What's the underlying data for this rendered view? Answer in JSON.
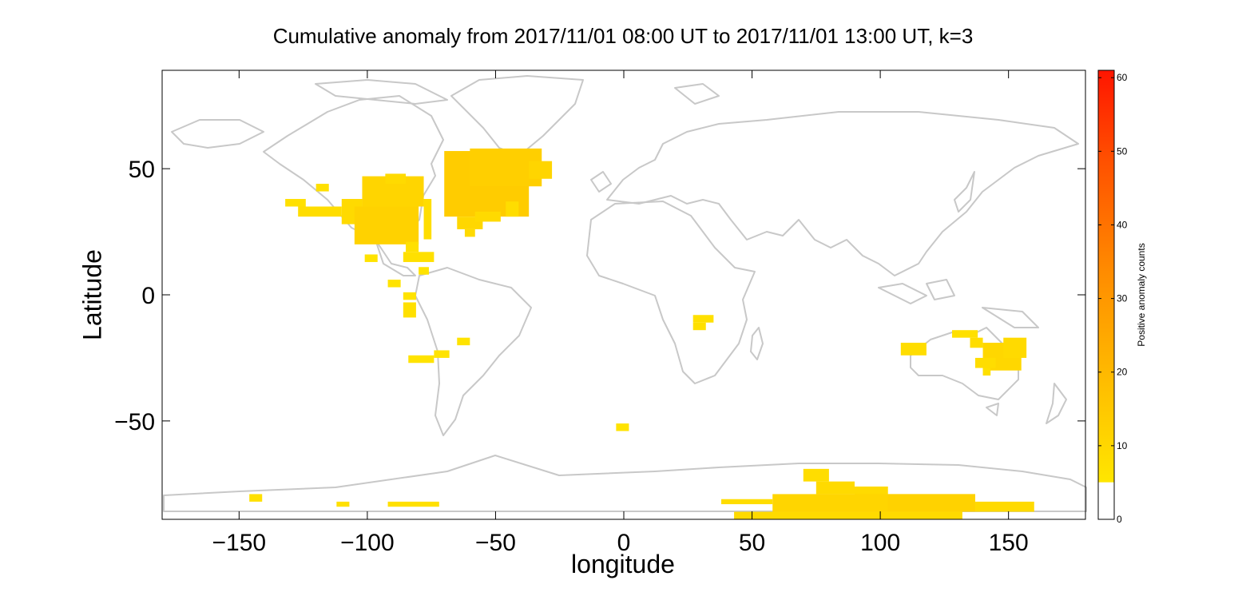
{
  "chart_data": {
    "type": "heatmap",
    "title": "Cumulative anomaly from 2017/11/01 08:00 UT to 2017/11/01 13:00 UT, k=3",
    "xlabel": "longitude",
    "ylabel": "Latitude",
    "xlim": [
      -180,
      180
    ],
    "ylim": [
      -89,
      89
    ],
    "xticks": [
      -150,
      -100,
      -50,
      0,
      50,
      100,
      150
    ],
    "yticks": [
      -50,
      0,
      50
    ],
    "colorbar": {
      "label": "Positive anomaly counts",
      "range": [
        0,
        61
      ],
      "ticks": [
        0,
        10,
        20,
        30,
        40,
        50,
        60
      ]
    },
    "colors": {
      "land": "#c8c8c8",
      "below_threshold": "#ffffff",
      "low": "#ffe600",
      "mid": "#ffa500",
      "high": "#ff1500"
    },
    "cells": [
      {
        "lon": [
          -132,
          -124
        ],
        "lat": [
          35,
          38
        ],
        "count": 7
      },
      {
        "lon": [
          -127,
          -110
        ],
        "lat": [
          31,
          35
        ],
        "count": 8
      },
      {
        "lon": [
          -120,
          -115
        ],
        "lat": [
          41,
          44
        ],
        "count": 7
      },
      {
        "lon": [
          -110,
          -102
        ],
        "lat": [
          28,
          38
        ],
        "count": 9
      },
      {
        "lon": [
          -102,
          -78
        ],
        "lat": [
          35,
          47
        ],
        "count": 11
      },
      {
        "lon": [
          -105,
          -80
        ],
        "lat": [
          20,
          35
        ],
        "count": 12
      },
      {
        "lon": [
          -93,
          -85
        ],
        "lat": [
          44,
          48
        ],
        "count": 9
      },
      {
        "lon": [
          -78,
          -75
        ],
        "lat": [
          22,
          38
        ],
        "count": 8
      },
      {
        "lon": [
          -86,
          -74
        ],
        "lat": [
          13,
          17
        ],
        "count": 7
      },
      {
        "lon": [
          -85,
          -80
        ],
        "lat": [
          17,
          21
        ],
        "count": 7
      },
      {
        "lon": [
          -80,
          -76
        ],
        "lat": [
          8,
          11
        ],
        "count": 6
      },
      {
        "lon": [
          -101,
          -96
        ],
        "lat": [
          13,
          16
        ],
        "count": 6
      },
      {
        "lon": [
          -92,
          -87
        ],
        "lat": [
          3,
          6
        ],
        "count": 6
      },
      {
        "lon": [
          -86,
          -81
        ],
        "lat": [
          -2,
          1
        ],
        "count": 6
      },
      {
        "lon": [
          -86,
          -81
        ],
        "lat": [
          -9,
          -3
        ],
        "count": 7
      },
      {
        "lon": [
          -65,
          -60
        ],
        "lat": [
          -20,
          -17
        ],
        "count": 6
      },
      {
        "lon": [
          -74,
          -68
        ],
        "lat": [
          -25,
          -22
        ],
        "count": 6
      },
      {
        "lon": [
          -84,
          -74
        ],
        "lat": [
          -27,
          -24
        ],
        "count": 6
      },
      {
        "lon": [
          -70,
          -37
        ],
        "lat": [
          31,
          57
        ],
        "count": 14
      },
      {
        "lon": [
          -60,
          -32
        ],
        "lat": [
          43,
          58
        ],
        "count": 13
      },
      {
        "lon": [
          -37,
          -28
        ],
        "lat": [
          46,
          53
        ],
        "count": 11
      },
      {
        "lon": [
          -65,
          -55
        ],
        "lat": [
          26,
          31
        ],
        "count": 10
      },
      {
        "lon": [
          -62,
          -58
        ],
        "lat": [
          23,
          26
        ],
        "count": 9
      },
      {
        "lon": [
          -58,
          -48
        ],
        "lat": [
          29,
          33
        ],
        "count": 9
      },
      {
        "lon": [
          -46,
          -41
        ],
        "lat": [
          31,
          37
        ],
        "count": 8
      },
      {
        "lon": [
          27,
          35
        ],
        "lat": [
          -11,
          -8
        ],
        "count": 7
      },
      {
        "lon": [
          27,
          32
        ],
        "lat": [
          -14,
          -11
        ],
        "count": 7
      },
      {
        "lon": [
          -3,
          2
        ],
        "lat": [
          -54,
          -51
        ],
        "count": 6
      },
      {
        "lon": [
          108,
          118
        ],
        "lat": [
          -24,
          -19
        ],
        "count": 8
      },
      {
        "lon": [
          128,
          138
        ],
        "lat": [
          -17,
          -14
        ],
        "count": 7
      },
      {
        "lon": [
          135,
          140
        ],
        "lat": [
          -21,
          -17
        ],
        "count": 8
      },
      {
        "lon": [
          140,
          155
        ],
        "lat": [
          -30,
          -19
        ],
        "count": 10
      },
      {
        "lon": [
          148,
          157
        ],
        "lat": [
          -25,
          -17
        ],
        "count": 9
      },
      {
        "lon": [
          137,
          145
        ],
        "lat": [
          -29,
          -25
        ],
        "count": 8
      },
      {
        "lon": [
          140,
          143
        ],
        "lat": [
          -32,
          -29
        ],
        "count": 7
      },
      {
        "lon": [
          70,
          80
        ],
        "lat": [
          -74,
          -69
        ],
        "count": 8
      },
      {
        "lon": [
          75,
          90
        ],
        "lat": [
          -79,
          -74
        ],
        "count": 9
      },
      {
        "lon": [
          90,
          103
        ],
        "lat": [
          -82,
          -76
        ],
        "count": 9
      },
      {
        "lon": [
          58,
          137
        ],
        "lat": [
          -86,
          -79
        ],
        "count": 11
      },
      {
        "lon": [
          103,
          137
        ],
        "lat": [
          -86,
          -79
        ],
        "count": 12
      },
      {
        "lon": [
          137,
          160
        ],
        "lat": [
          -86,
          -82
        ],
        "count": 9
      },
      {
        "lon": [
          38,
          58
        ],
        "lat": [
          -83,
          -81
        ],
        "count": 8
      },
      {
        "lon": [
          43,
          132
        ],
        "lat": [
          -89,
          -86
        ],
        "count": 9
      },
      {
        "lon": [
          -146,
          -141
        ],
        "lat": [
          -82,
          -79
        ],
        "count": 7
      },
      {
        "lon": [
          -112,
          -107
        ],
        "lat": [
          -84,
          -82
        ],
        "count": 7
      },
      {
        "lon": [
          -92,
          -72
        ],
        "lat": [
          -84,
          -82
        ],
        "count": 7
      }
    ]
  }
}
